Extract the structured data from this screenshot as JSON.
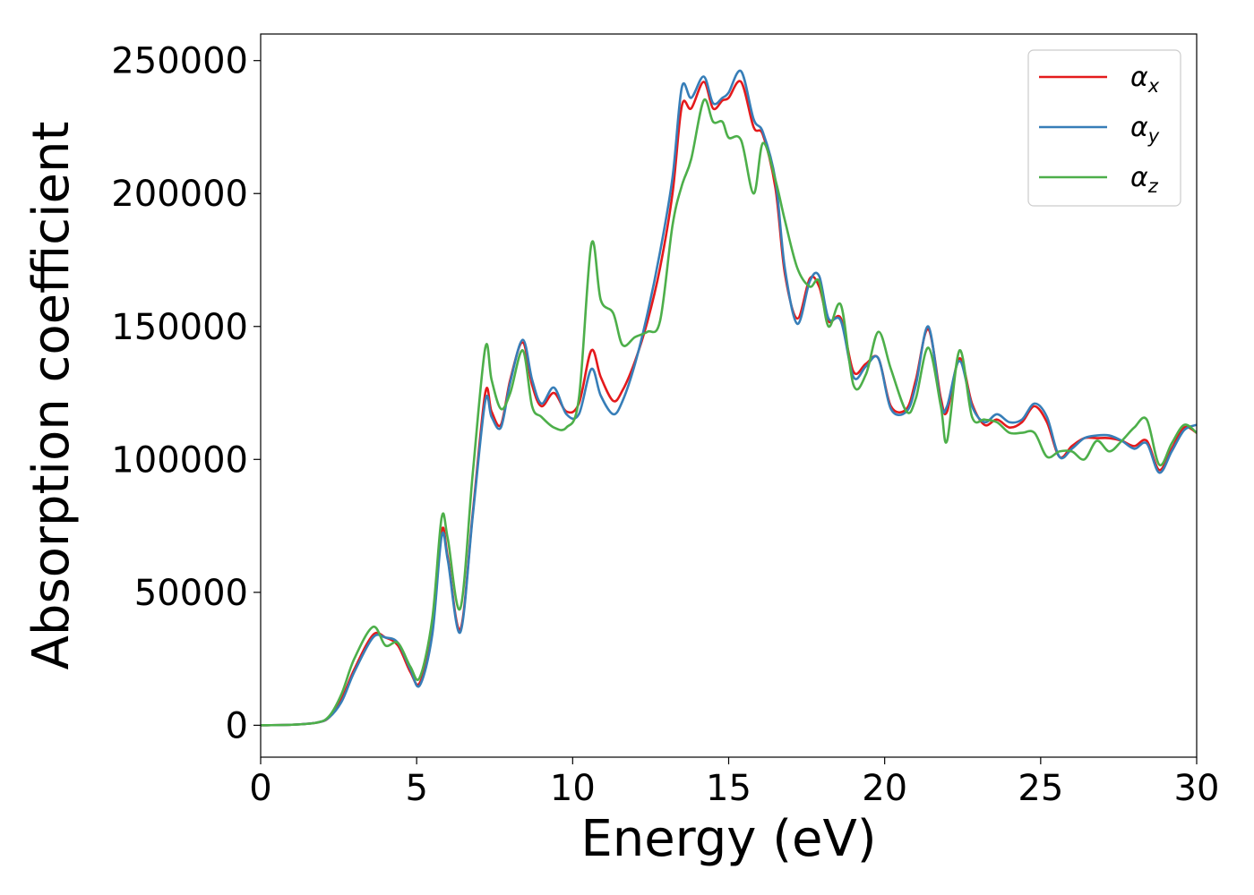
{
  "chart_data": {
    "type": "line",
    "title": "",
    "xlabel": "Energy (eV)",
    "ylabel": "Absorption coefficient",
    "xlim": [
      0,
      30
    ],
    "ylim": [
      -12000,
      260000
    ],
    "xticks": [
      0,
      5,
      10,
      15,
      20,
      25,
      30
    ],
    "xtick_labels": [
      "0",
      "5",
      "10",
      "15",
      "20",
      "25",
      "30"
    ],
    "yticks": [
      0,
      50000,
      100000,
      150000,
      200000,
      250000
    ],
    "ytick_labels": [
      "0",
      "50000",
      "100000",
      "150000",
      "200000",
      "250000"
    ],
    "grid": false,
    "legend_position": "top-right",
    "x": [
      0,
      1,
      1.8,
      2.2,
      2.6,
      3.0,
      3.6,
      4.0,
      4.4,
      4.8,
      5.1,
      5.5,
      5.8,
      6.0,
      6.4,
      6.8,
      7.2,
      7.4,
      7.7,
      8.0,
      8.4,
      8.7,
      9.0,
      9.4,
      9.8,
      10.2,
      10.6,
      10.9,
      11.3,
      11.6,
      12.0,
      12.4,
      12.8,
      13.2,
      13.5,
      13.8,
      14.2,
      14.5,
      14.8,
      15.0,
      15.4,
      15.8,
      16.1,
      16.5,
      16.8,
      17.2,
      17.6,
      17.9,
      18.2,
      18.6,
      19.0,
      19.4,
      19.8,
      20.2,
      20.7,
      21.0,
      21.4,
      21.8,
      22.0,
      22.4,
      22.8,
      23.2,
      23.6,
      24.0,
      24.4,
      24.8,
      25.2,
      25.6,
      26.0,
      26.4,
      26.8,
      27.2,
      27.6,
      28.0,
      28.4,
      28.8,
      29.2,
      29.6,
      30.0
    ],
    "series": [
      {
        "name": "αx",
        "color": "#e41a1c",
        "values": [
          0,
          200,
          1000,
          3000,
          10000,
          21000,
          34000,
          33000,
          30000,
          20000,
          16000,
          35000,
          73000,
          63000,
          36000,
          80000,
          125000,
          118000,
          113000,
          130000,
          144000,
          128000,
          120000,
          125000,
          118000,
          121000,
          141000,
          131000,
          122000,
          126000,
          137000,
          152000,
          172000,
          200000,
          233000,
          232000,
          242000,
          232000,
          235000,
          236000,
          242000,
          225000,
          222000,
          202000,
          170000,
          153000,
          168000,
          165000,
          152000,
          153000,
          133000,
          136000,
          138000,
          120000,
          119000,
          130000,
          149000,
          123000,
          118000,
          138000,
          121000,
          113000,
          115000,
          112000,
          114000,
          120000,
          114000,
          101000,
          105000,
          108000,
          108000,
          108000,
          107000,
          105000,
          107000,
          96000,
          104000,
          112000,
          110000
        ]
      },
      {
        "name": "αy",
        "color": "#377eb8",
        "values": [
          0,
          200,
          1000,
          3000,
          9000,
          20000,
          33000,
          33000,
          31000,
          21000,
          15000,
          34000,
          71000,
          62000,
          35000,
          79000,
          122000,
          116000,
          112000,
          129000,
          145000,
          130000,
          121000,
          127000,
          117000,
          117000,
          134000,
          124000,
          117000,
          122000,
          136000,
          155000,
          178000,
          206000,
          240000,
          236000,
          244000,
          234000,
          236000,
          238000,
          246000,
          228000,
          223000,
          205000,
          172000,
          151000,
          167000,
          169000,
          153000,
          152000,
          131000,
          135000,
          138000,
          119000,
          118000,
          128000,
          150000,
          121000,
          120000,
          137000,
          120000,
          114000,
          117000,
          114000,
          115000,
          121000,
          116000,
          101000,
          104000,
          108000,
          109000,
          109000,
          107000,
          104000,
          106000,
          95000,
          103000,
          111000,
          113000
        ]
      },
      {
        "name": "αz",
        "color": "#4daf4a",
        "values": [
          0,
          200,
          1000,
          3500,
          12000,
          25000,
          37000,
          30000,
          31000,
          22000,
          18000,
          40000,
          78000,
          70000,
          44000,
          95000,
          142000,
          130000,
          119000,
          125000,
          141000,
          120000,
          116000,
          112000,
          112000,
          123000,
          181000,
          160000,
          155000,
          143000,
          146000,
          148000,
          152000,
          188000,
          203000,
          213000,
          235000,
          227000,
          227000,
          221000,
          220000,
          200000,
          219000,
          205000,
          190000,
          172000,
          165000,
          167000,
          150000,
          158000,
          128000,
          132000,
          148000,
          134000,
          118000,
          123000,
          142000,
          120000,
          107000,
          141000,
          116000,
          115000,
          114000,
          110000,
          110000,
          110000,
          101000,
          103000,
          103000,
          100000,
          107000,
          103000,
          107000,
          112000,
          115000,
          98000,
          106000,
          113000,
          110000
        ]
      }
    ]
  }
}
